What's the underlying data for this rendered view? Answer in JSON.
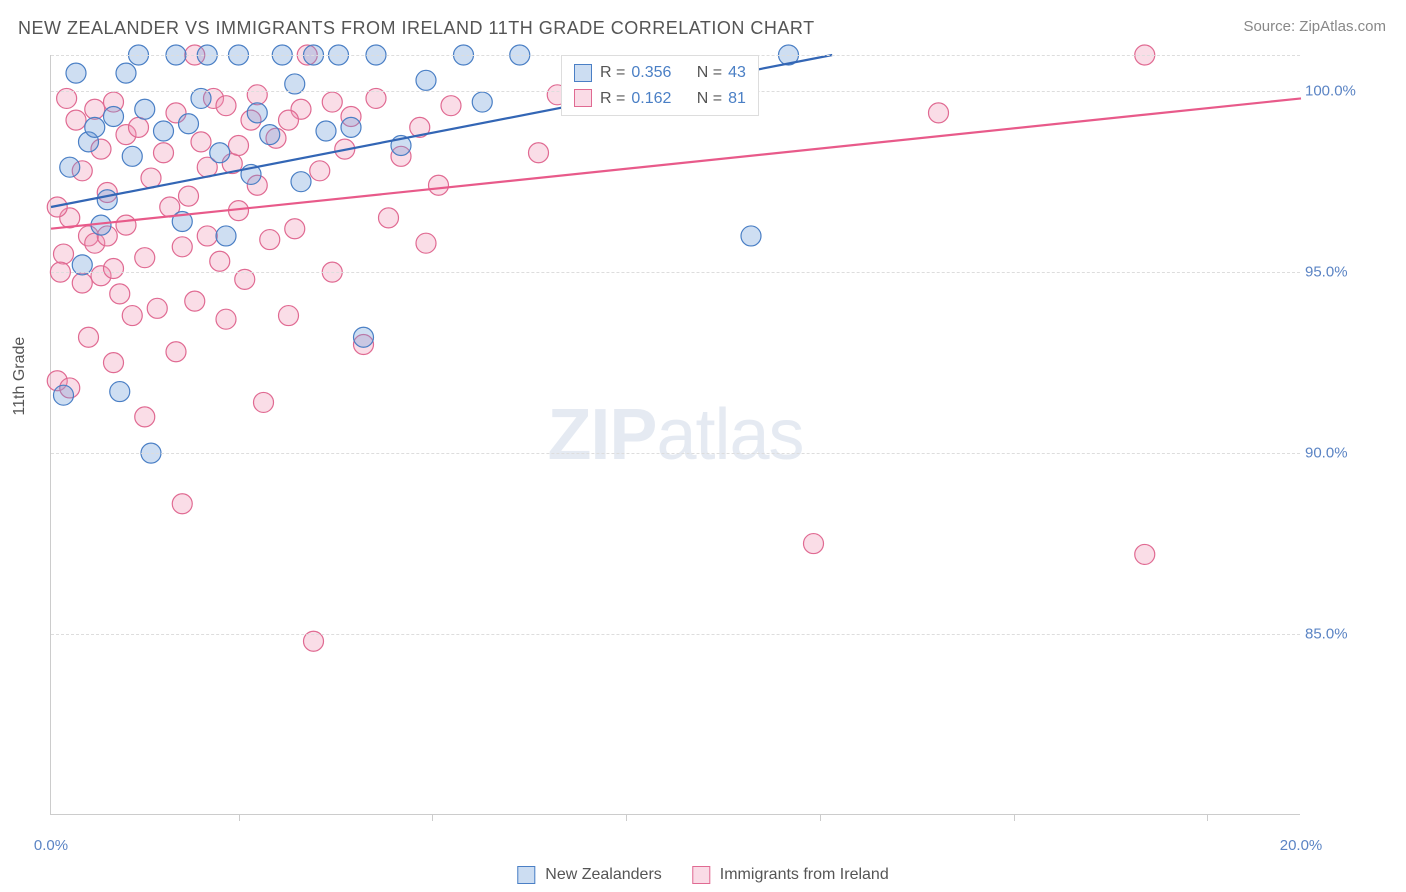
{
  "title": "NEW ZEALANDER VS IMMIGRANTS FROM IRELAND 11TH GRADE CORRELATION CHART",
  "source": "Source: ZipAtlas.com",
  "watermark": {
    "bold": "ZIP",
    "light": "atlas"
  },
  "ylabel": "11th Grade",
  "chart": {
    "type": "scatter",
    "xlim": [
      0,
      20
    ],
    "ylim": [
      80,
      101
    ],
    "x_ticks": [
      0,
      20
    ],
    "x_tick_labels": [
      "0.0%",
      "20.0%"
    ],
    "x_minor_ticks": [
      3.0,
      6.1,
      9.2,
      12.3,
      15.4,
      18.5
    ],
    "y_gridlines": [
      85,
      90,
      95,
      100,
      101
    ],
    "y_tick_labels": {
      "85": "85.0%",
      "90": "90.0%",
      "95": "95.0%",
      "100": "100.0%"
    },
    "y_tick_color": "#5b84c4",
    "x_tick_color": "#5b84c4",
    "background_color": "#ffffff",
    "grid_color": "#dddddd",
    "marker_radius": 10,
    "marker_fill_opacity": 0.32,
    "marker_stroke_width": 1.2,
    "line_width": 2.2,
    "series": [
      {
        "key": "nz",
        "label": "New Zealanders",
        "color": "#6699d8",
        "stroke": "#4a7fc5",
        "line_color": "#3366b5",
        "r_value": "0.356",
        "n_value": "43",
        "trend": {
          "x1": 0,
          "y1": 96.8,
          "x2": 12.5,
          "y2": 101
        },
        "points": [
          [
            0.3,
            97.9
          ],
          [
            0.4,
            100.5
          ],
          [
            0.5,
            95.2
          ],
          [
            0.6,
            98.6
          ],
          [
            0.7,
            99.0
          ],
          [
            0.8,
            96.3
          ],
          [
            0.9,
            97.0
          ],
          [
            1.0,
            99.3
          ],
          [
            1.1,
            91.7
          ],
          [
            1.2,
            100.5
          ],
          [
            1.3,
            98.2
          ],
          [
            1.4,
            101
          ],
          [
            1.5,
            99.5
          ],
          [
            1.6,
            90.0
          ],
          [
            1.8,
            98.9
          ],
          [
            2.0,
            101
          ],
          [
            2.1,
            96.4
          ],
          [
            2.2,
            99.1
          ],
          [
            2.4,
            99.8
          ],
          [
            2.5,
            101
          ],
          [
            2.7,
            98.3
          ],
          [
            2.8,
            96.0
          ],
          [
            3.0,
            101
          ],
          [
            3.2,
            97.7
          ],
          [
            3.3,
            99.4
          ],
          [
            3.5,
            98.8
          ],
          [
            3.7,
            101
          ],
          [
            3.9,
            100.2
          ],
          [
            4.0,
            97.5
          ],
          [
            4.2,
            101
          ],
          [
            4.4,
            98.9
          ],
          [
            4.6,
            101
          ],
          [
            4.8,
            99.0
          ],
          [
            5.0,
            93.2
          ],
          [
            5.2,
            101
          ],
          [
            5.6,
            98.5
          ],
          [
            6.0,
            100.3
          ],
          [
            6.6,
            101
          ],
          [
            6.9,
            99.7
          ],
          [
            7.5,
            101
          ],
          [
            11.2,
            96.0
          ],
          [
            11.8,
            101
          ],
          [
            0.2,
            91.6
          ]
        ]
      },
      {
        "key": "ie",
        "label": "Immigrants from Ireland",
        "color": "#f194b4",
        "stroke": "#e06a92",
        "line_color": "#e85a8a",
        "r_value": "0.162",
        "n_value": "81",
        "trend": {
          "x1": 0,
          "y1": 96.2,
          "x2": 20,
          "y2": 99.8
        },
        "points": [
          [
            0.2,
            95.5
          ],
          [
            0.3,
            96.5
          ],
          [
            0.4,
            99.2
          ],
          [
            0.5,
            94.7
          ],
          [
            0.5,
            97.8
          ],
          [
            0.6,
            96.0
          ],
          [
            0.7,
            99.5
          ],
          [
            0.7,
            95.8
          ],
          [
            0.8,
            94.9
          ],
          [
            0.8,
            98.4
          ],
          [
            0.9,
            97.2
          ],
          [
            0.9,
            96.0
          ],
          [
            1.0,
            99.7
          ],
          [
            1.0,
            95.1
          ],
          [
            1.1,
            94.4
          ],
          [
            1.2,
            98.8
          ],
          [
            1.2,
            96.3
          ],
          [
            1.3,
            93.8
          ],
          [
            1.4,
            99.0
          ],
          [
            1.5,
            95.4
          ],
          [
            1.6,
            97.6
          ],
          [
            1.7,
            94.0
          ],
          [
            1.8,
            98.3
          ],
          [
            1.9,
            96.8
          ],
          [
            2.0,
            99.4
          ],
          [
            2.1,
            95.7
          ],
          [
            2.1,
            88.6
          ],
          [
            2.2,
            97.1
          ],
          [
            2.3,
            94.2
          ],
          [
            2.4,
            98.6
          ],
          [
            2.5,
            96.0
          ],
          [
            2.6,
            99.8
          ],
          [
            2.7,
            95.3
          ],
          [
            2.8,
            93.7
          ],
          [
            2.9,
            98.0
          ],
          [
            3.0,
            96.7
          ],
          [
            3.1,
            94.8
          ],
          [
            3.2,
            99.2
          ],
          [
            3.3,
            97.4
          ],
          [
            3.4,
            91.4
          ],
          [
            3.5,
            95.9
          ],
          [
            3.6,
            98.7
          ],
          [
            3.8,
            93.8
          ],
          [
            3.9,
            96.2
          ],
          [
            4.0,
            99.5
          ],
          [
            4.2,
            84.8
          ],
          [
            4.3,
            97.8
          ],
          [
            4.5,
            95.0
          ],
          [
            4.7,
            98.4
          ],
          [
            4.8,
            99.3
          ],
          [
            5.0,
            93.0
          ],
          [
            5.2,
            99.8
          ],
          [
            5.4,
            96.5
          ],
          [
            5.6,
            98.2
          ],
          [
            5.9,
            99.0
          ],
          [
            6.0,
            95.8
          ],
          [
            6.2,
            97.4
          ],
          [
            6.4,
            99.6
          ],
          [
            7.8,
            98.3
          ],
          [
            8.1,
            99.9
          ],
          [
            12.2,
            87.5
          ],
          [
            14.2,
            99.4
          ],
          [
            17.5,
            101
          ],
          [
            17.5,
            87.2
          ],
          [
            0.1,
            92.0
          ],
          [
            0.3,
            91.8
          ],
          [
            0.6,
            93.2
          ],
          [
            1.0,
            92.5
          ],
          [
            1.5,
            91.0
          ],
          [
            2.0,
            92.8
          ],
          [
            2.5,
            97.9
          ],
          [
            3.0,
            98.5
          ],
          [
            3.3,
            99.9
          ],
          [
            3.8,
            99.2
          ],
          [
            4.5,
            99.7
          ],
          [
            0.15,
            95.0
          ],
          [
            0.25,
            99.8
          ],
          [
            2.3,
            101
          ],
          [
            4.1,
            101
          ],
          [
            2.8,
            99.6
          ],
          [
            0.1,
            96.8
          ]
        ]
      }
    ],
    "legend_box": {
      "r_label": "R =",
      "n_label": "N ="
    },
    "bottom_legend": true
  }
}
